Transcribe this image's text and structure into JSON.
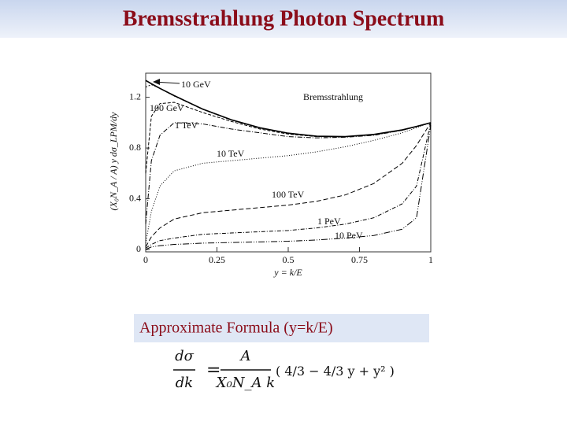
{
  "slide": {
    "title": "Bremsstrahlung Photon Spectrum",
    "formula_caption": "Approximate Formula (y=k/E)",
    "formula": {
      "lhs_num": "dσ",
      "lhs_den": "dk",
      "equals": "=",
      "rhs_num": "A",
      "rhs_den": "X₀N_A k",
      "bracket": "( 4/3 − 4/3 y + y² )"
    }
  },
  "chart_data": {
    "type": "line",
    "x_label": "y = k/E",
    "y_label": "(X₀N_A / A) y dσ_LPM/dy",
    "x": [
      0,
      0.02,
      0.05,
      0.1,
      0.2,
      0.3,
      0.4,
      0.5,
      0.6,
      0.7,
      0.8,
      0.9,
      0.95,
      1
    ],
    "xlim": [
      0,
      1
    ],
    "xticks": [
      0,
      0.25,
      0.5,
      0.75,
      1
    ],
    "ylim": [
      0,
      1.39
    ],
    "yticks": [
      0,
      0.4,
      0.8,
      1.2
    ],
    "series": [
      {
        "name": "Bremsstrahlung",
        "color": "#000000",
        "dash": "none",
        "values": [
          1.333,
          1.307,
          1.27,
          1.213,
          1.107,
          1.023,
          0.96,
          0.917,
          0.893,
          0.89,
          0.907,
          0.943,
          0.97,
          1.0
        ]
      },
      {
        "name": "10 GeV",
        "color": "#000000",
        "dash": "2 2",
        "values": [
          1.28,
          1.3,
          1.27,
          1.21,
          1.105,
          1.02,
          0.958,
          0.915,
          0.892,
          0.889,
          0.906,
          0.942,
          0.968,
          1.0
        ]
      },
      {
        "name": "100 GeV",
        "color": "#000000",
        "dash": "4 2",
        "values": [
          0.6,
          1.05,
          1.15,
          1.16,
          1.08,
          1.01,
          0.95,
          0.91,
          0.89,
          0.888,
          0.905,
          0.94,
          0.97,
          1.0
        ]
      },
      {
        "name": "1 TeV",
        "color": "#000000",
        "dash": "6 2 1 2",
        "values": [
          0.2,
          0.7,
          0.9,
          1.0,
          0.99,
          0.95,
          0.92,
          0.89,
          0.88,
          0.885,
          0.9,
          0.94,
          0.97,
          1.0
        ]
      },
      {
        "name": "10 TeV",
        "color": "#000000",
        "dash": "1 2",
        "values": [
          0.05,
          0.3,
          0.5,
          0.62,
          0.68,
          0.7,
          0.72,
          0.74,
          0.77,
          0.81,
          0.86,
          0.92,
          0.96,
          1.0
        ]
      },
      {
        "name": "100 TeV",
        "color": "#000000",
        "dash": "6 3",
        "values": [
          0.02,
          0.1,
          0.17,
          0.24,
          0.29,
          0.31,
          0.33,
          0.35,
          0.38,
          0.43,
          0.52,
          0.68,
          0.82,
          1.0
        ]
      },
      {
        "name": "1 PeV",
        "color": "#000000",
        "dash": "5 2 1 2",
        "values": [
          0.01,
          0.04,
          0.07,
          0.09,
          0.12,
          0.13,
          0.14,
          0.15,
          0.17,
          0.2,
          0.25,
          0.36,
          0.5,
          1.0
        ]
      },
      {
        "name": "10 PeV",
        "color": "#000000",
        "dash": "8 2 1 2 1 2",
        "values": [
          0,
          0.02,
          0.03,
          0.04,
          0.05,
          0.055,
          0.06,
          0.065,
          0.075,
          0.09,
          0.11,
          0.16,
          0.25,
          0.98
        ]
      }
    ]
  }
}
